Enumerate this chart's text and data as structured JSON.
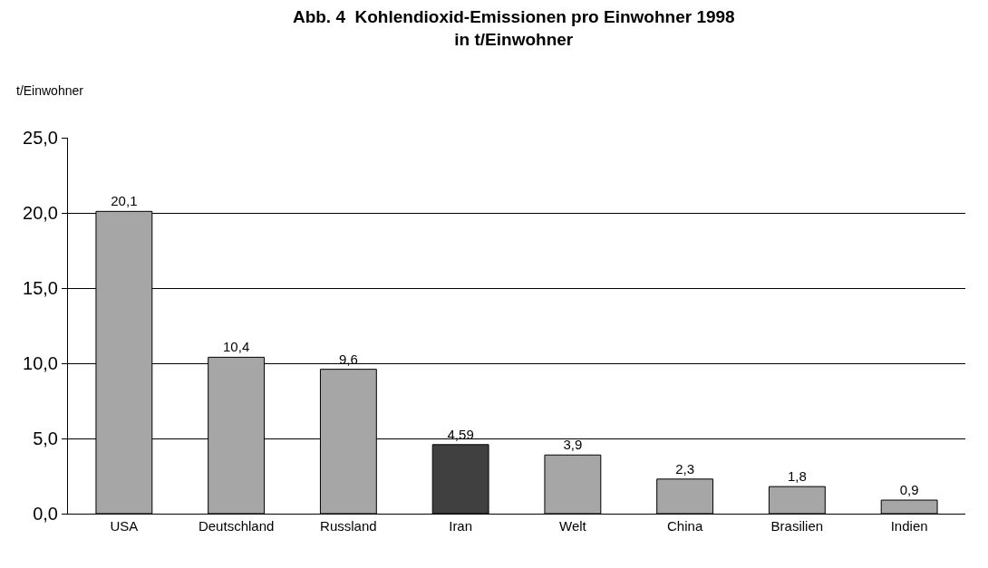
{
  "chart_data": {
    "type": "bar",
    "title": "Abb. 4  Kohlendioxid-Emissionen pro Einwohner 1998\nin t/Einwohner",
    "ylabel": "t/Einwohner",
    "categories": [
      "USA",
      "Deutschland",
      "Russland",
      "Iran",
      "Welt",
      "China",
      "Brasilien",
      "Indien"
    ],
    "values": [
      20.1,
      10.4,
      9.6,
      4.59,
      3.9,
      2.3,
      1.8,
      0.9
    ],
    "colors": [
      "#a6a6a6",
      "#a6a6a6",
      "#a6a6a6",
      "#404040",
      "#a6a6a6",
      "#a6a6a6",
      "#a6a6a6",
      "#a6a6a6"
    ],
    "value_labels": [
      "20,1",
      "10,4",
      "9,6",
      "4,59",
      "3,9",
      "2,3",
      "1,8",
      "0,9"
    ],
    "ylim": [
      0,
      25
    ],
    "yticks": [
      {
        "value": 0,
        "label": "0,0"
      },
      {
        "value": 5,
        "label": "5,0"
      },
      {
        "value": 10,
        "label": "10,0"
      },
      {
        "value": 15,
        "label": "15,0"
      },
      {
        "value": 20,
        "label": "20,0"
      },
      {
        "value": 25,
        "label": "25,0"
      }
    ],
    "grid": "y"
  }
}
